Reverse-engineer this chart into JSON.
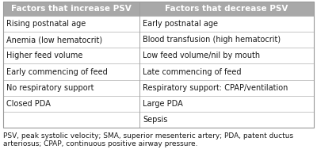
{
  "header_left": "Factors that increase PSV",
  "header_right": "Factors that decrease PSV",
  "rows": [
    [
      "Rising postnatal age",
      "Early postnatal age"
    ],
    [
      "Anemia (low hematocrit)",
      "Blood transfusion (high hematocrit)"
    ],
    [
      "Higher feed volume",
      "Low feed volume/nil by mouth"
    ],
    [
      "Early commencing of feed",
      "Late commencing of feed"
    ],
    [
      "No respiratory support",
      "Respiratory support: CPAP/ventilation"
    ],
    [
      "Closed PDA",
      "Large PDA"
    ],
    [
      "",
      "Sepsis"
    ]
  ],
  "footer_line1": "PSV, peak systolic velocity; SMA, superior mesenteric artery; PDA, patent ductus",
  "footer_line2": "arteriosus; CPAP, continuous positive airway pressure.",
  "header_bg": "#a8a8a8",
  "header_text_color": "#ffffff",
  "border_color": "#bbbbbb",
  "text_color": "#1a1a1a",
  "footer_color": "#1a1a1a",
  "bg_color": "#ffffff",
  "header_fontsize": 7.5,
  "cell_fontsize": 7.0,
  "footer_fontsize": 6.5,
  "col_split": 0.44
}
